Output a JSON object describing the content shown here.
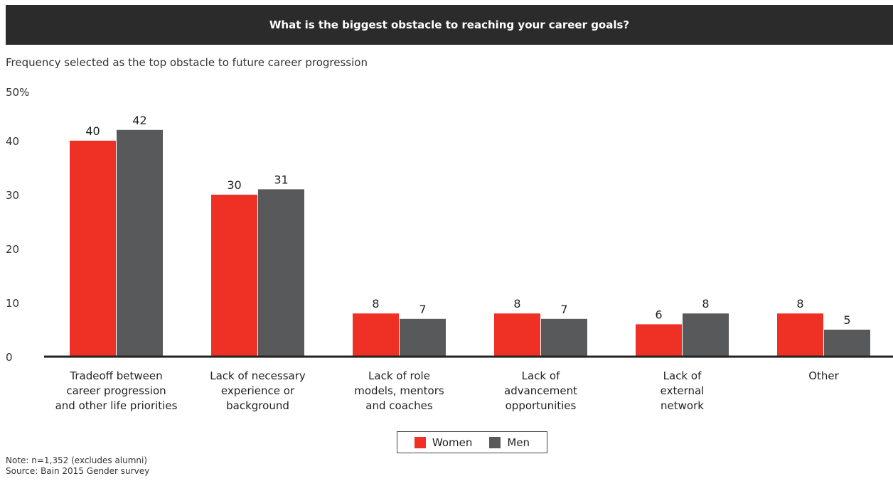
{
  "header": {
    "title": "What is the biggest obstacle to reaching your career goals?"
  },
  "subtitle": "Frequency selected as the top obstacle to future career progression",
  "chart_data": {
    "type": "bar",
    "categories": [
      [
        "Tradeoff between",
        "career progression",
        "and other life priorities"
      ],
      [
        "Lack of necessary",
        "experience or",
        "background"
      ],
      [
        "Lack of role",
        "models, mentors",
        "and coaches"
      ],
      [
        "Lack of",
        "advancement",
        "opportunities"
      ],
      [
        "Lack of",
        "external",
        "network"
      ],
      [
        "Other"
      ]
    ],
    "series": [
      {
        "name": "Women",
        "color": "#ee3124",
        "values": [
          40,
          30,
          8,
          8,
          6,
          8
        ]
      },
      {
        "name": "Men",
        "color": "#58595b",
        "values": [
          42,
          31,
          7,
          7,
          8,
          5
        ]
      }
    ],
    "yticks": [
      "0",
      "10",
      "20",
      "30",
      "40",
      "50%"
    ],
    "ylim": [
      0,
      50
    ],
    "grid": false,
    "legend_position": "bottom-center"
  },
  "legend": {
    "women": "Women",
    "men": "Men"
  },
  "footer": {
    "note": "Note: n=1,352 (excludes alumni)",
    "source": "Source: Bain 2015 Gender survey"
  }
}
